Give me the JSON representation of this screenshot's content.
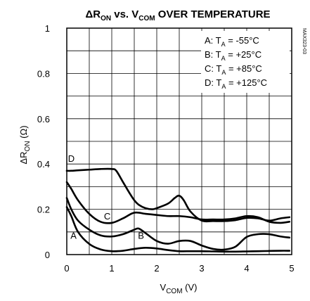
{
  "chart_data": {
    "type": "line",
    "title": {
      "pre": "ΔR",
      "sub1": "ON",
      "mid": " vs. V",
      "sub2": "COM",
      "post": " OVER TEMPERATURE"
    },
    "xlabel": {
      "main": "V",
      "sub": "COM",
      "post": " (V)"
    },
    "ylabel": {
      "main": "ΔR",
      "sub": "ON",
      "post": " (Ω)"
    },
    "xlim": [
      0,
      5
    ],
    "ylim": [
      0,
      1
    ],
    "xticks": [
      0,
      1,
      2,
      3,
      4,
      5
    ],
    "xtick_labels": [
      "0",
      "1",
      "2",
      "3",
      "4",
      "5"
    ],
    "yticks": [
      0,
      0.2,
      0.4,
      0.6,
      0.8,
      1
    ],
    "ytick_labels": [
      "0",
      "0.2",
      "0.4",
      "0.6",
      "0.8",
      "1"
    ],
    "grid": true,
    "legend": {
      "position": "top-right",
      "entries": [
        {
          "key": "A",
          "text": "-55°C"
        },
        {
          "key": "B",
          "text": "+25°C"
        },
        {
          "key": "C",
          "text": "+85°C"
        },
        {
          "key": "D",
          "text": "+125°C"
        }
      ],
      "prefix": "T",
      "prefix_sub": "A",
      "relation_A": "=",
      "relation_other": "= "
    },
    "side_code": "MAX323-03",
    "series": [
      {
        "name": "A",
        "x": [
          0,
          0.1,
          0.25,
          0.5,
          0.75,
          1.0,
          1.25,
          1.5,
          1.75,
          2.0,
          2.25,
          2.5,
          2.75,
          3.0,
          3.25,
          3.5,
          3.75,
          4.0,
          4.25,
          4.5,
          4.75,
          4.95
        ],
        "y": [
          0.21,
          0.17,
          0.1,
          0.047,
          0.023,
          0.015,
          0.017,
          0.025,
          0.03,
          0.027,
          0.02,
          0.015,
          0.015,
          0.015,
          0.014,
          0.013,
          0.013,
          0.014,
          0.015,
          0.016,
          0.017,
          0.017
        ]
      },
      {
        "name": "B",
        "x": [
          0,
          0.1,
          0.25,
          0.5,
          0.75,
          1.0,
          1.25,
          1.5,
          1.6,
          1.75,
          2.0,
          2.25,
          2.5,
          2.75,
          3.0,
          3.25,
          3.5,
          3.75,
          4.0,
          4.25,
          4.5,
          4.75,
          4.95
        ],
        "y": [
          0.25,
          0.2,
          0.15,
          0.11,
          0.085,
          0.08,
          0.09,
          0.11,
          0.115,
          0.095,
          0.06,
          0.048,
          0.06,
          0.06,
          0.04,
          0.025,
          0.022,
          0.035,
          0.078,
          0.09,
          0.09,
          0.08,
          0.075
        ]
      },
      {
        "name": "C",
        "x": [
          0,
          0.1,
          0.25,
          0.5,
          0.75,
          1.0,
          1.25,
          1.5,
          1.75,
          2.0,
          2.25,
          2.5,
          2.75,
          3.0,
          3.25,
          3.5,
          3.75,
          4.0,
          4.25,
          4.5,
          4.75,
          4.95
        ],
        "y": [
          0.32,
          0.29,
          0.24,
          0.18,
          0.145,
          0.14,
          0.16,
          0.185,
          0.18,
          0.175,
          0.17,
          0.17,
          0.165,
          0.155,
          0.155,
          0.155,
          0.16,
          0.17,
          0.165,
          0.145,
          0.14,
          0.145
        ]
      },
      {
        "name": "D",
        "x": [
          0,
          0.1,
          0.25,
          0.5,
          0.75,
          1.0,
          1.1,
          1.25,
          1.4,
          1.5,
          1.6,
          1.75,
          1.9,
          2.0,
          2.25,
          2.4,
          2.5,
          2.6,
          2.75,
          3.0,
          3.25,
          3.5,
          3.75,
          4.0,
          4.25,
          4.5,
          4.75,
          4.95
        ],
        "y": [
          0.37,
          0.37,
          0.372,
          0.375,
          0.378,
          0.378,
          0.37,
          0.32,
          0.27,
          0.24,
          0.22,
          0.205,
          0.2,
          0.205,
          0.225,
          0.25,
          0.26,
          0.24,
          0.19,
          0.15,
          0.148,
          0.148,
          0.152,
          0.162,
          0.16,
          0.15,
          0.16,
          0.165
        ]
      }
    ],
    "curve_labels": [
      {
        "text": "A",
        "x": 0.15,
        "y": 0.07
      },
      {
        "text": "B",
        "x": 1.65,
        "y": 0.07
      },
      {
        "text": "C",
        "x": 0.9,
        "y": 0.155
      },
      {
        "text": "D",
        "x": 0.1,
        "y": 0.41
      }
    ]
  }
}
